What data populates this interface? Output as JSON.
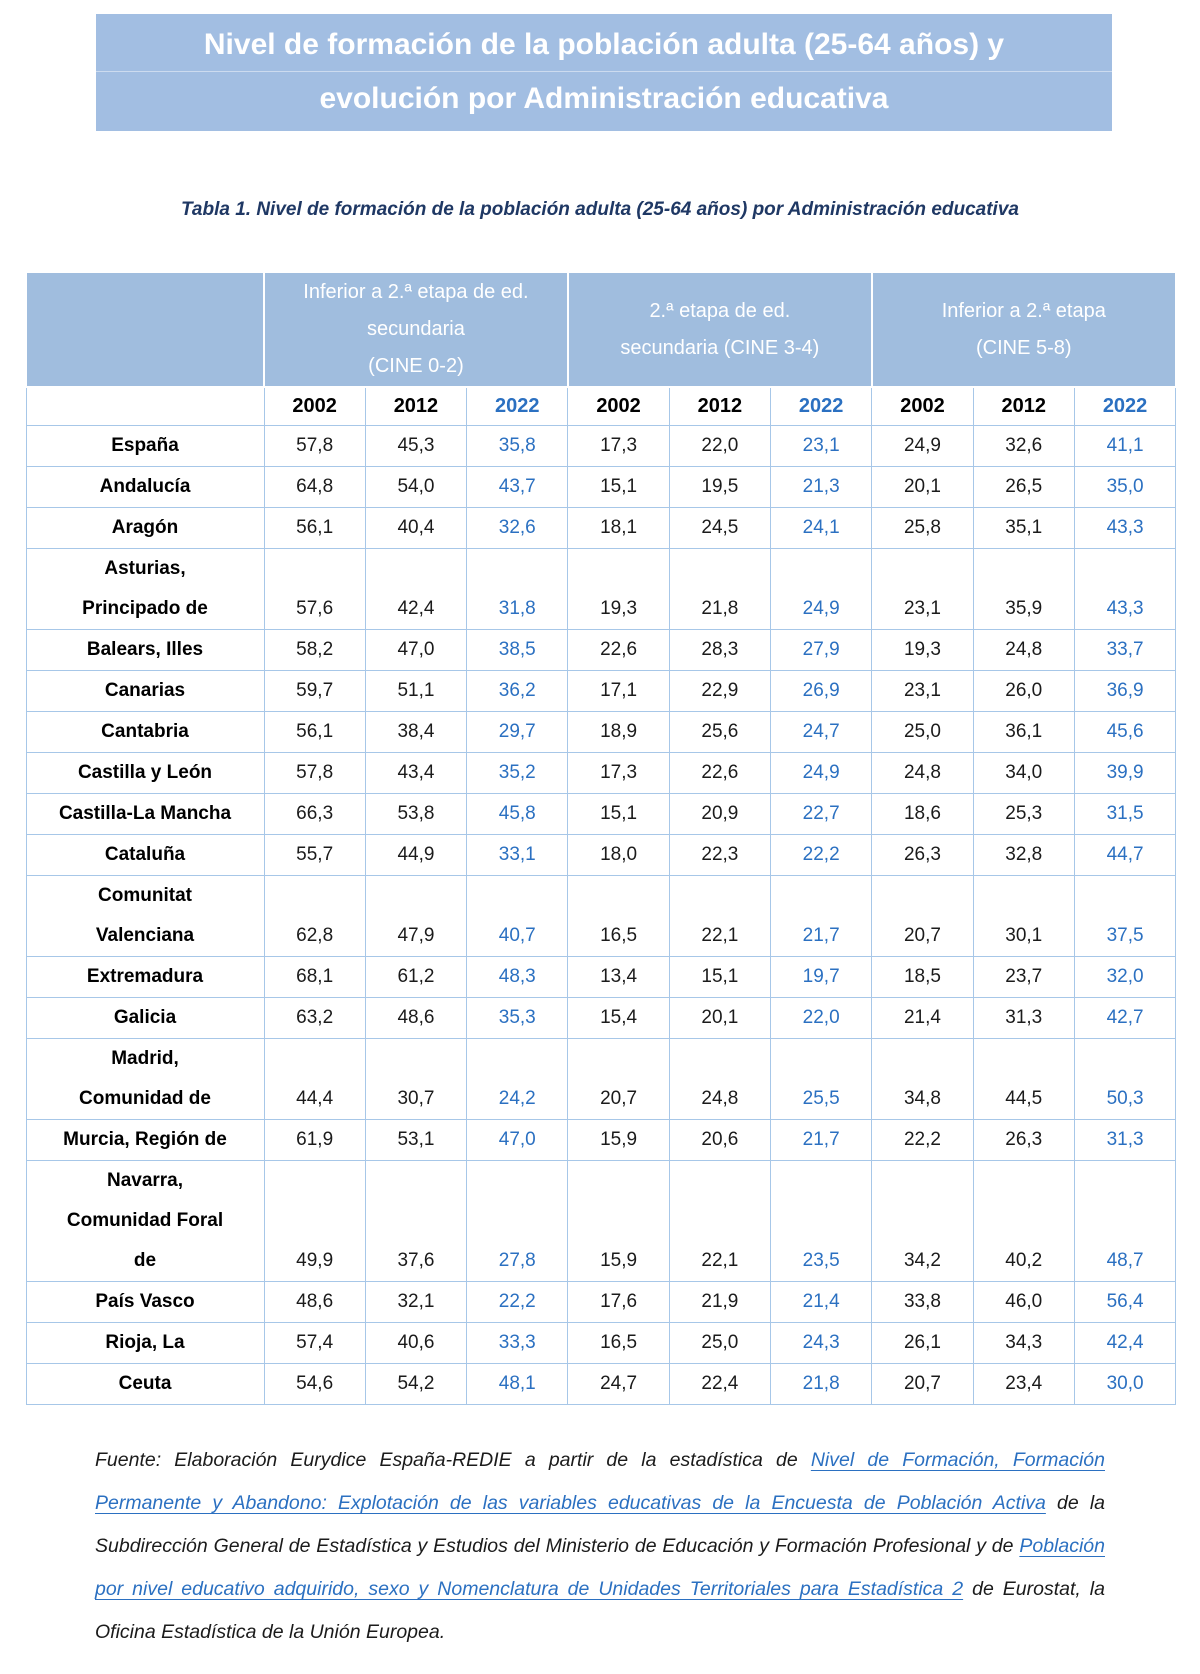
{
  "title": {
    "line1": "Nivel de formación de la población adulta (25-64 años) y",
    "line2": "evolución por Administración educativa"
  },
  "caption": "Tabla 1. Nivel de formación de la población adulta (25-64 años) por Administración educativa",
  "colors": {
    "banner_bg": "#A2BEE2",
    "table_header_bg": "#A0BDDE",
    "table_border": "#A7C7E8",
    "accent_blue_2022": "#2B70C1",
    "caption_navy": "#1F3864",
    "link_blue": "#2B70C1"
  },
  "table": {
    "groups": [
      "Inferior a 2.ª etapa de ed.\nsecundaria\n(CINE 0-2)",
      "2.ª etapa de ed.\nsecundaria (CINE 3-4)",
      "Inferior a 2.ª etapa\n(CINE 5-8)"
    ],
    "years": [
      "2002",
      "2012",
      "2022"
    ],
    "rows": [
      {
        "label": "España",
        "values": [
          "57,8",
          "45,3",
          "35,8",
          "17,3",
          "22,0",
          "23,1",
          "24,9",
          "32,6",
          "41,1"
        ]
      },
      {
        "label": "Andalucía",
        "values": [
          "64,8",
          "54,0",
          "43,7",
          "15,1",
          "19,5",
          "21,3",
          "20,1",
          "26,5",
          "35,0"
        ]
      },
      {
        "label": "Aragón",
        "values": [
          "56,1",
          "40,4",
          "32,6",
          "18,1",
          "24,5",
          "24,1",
          "25,8",
          "35,1",
          "43,3"
        ]
      },
      {
        "label": "Asturias,\nPrincipado de",
        "values": [
          "57,6",
          "42,4",
          "31,8",
          "19,3",
          "21,8",
          "24,9",
          "23,1",
          "35,9",
          "43,3"
        ]
      },
      {
        "label": "Balears, Illes",
        "values": [
          "58,2",
          "47,0",
          "38,5",
          "22,6",
          "28,3",
          "27,9",
          "19,3",
          "24,8",
          "33,7"
        ]
      },
      {
        "label": "Canarias",
        "values": [
          "59,7",
          "51,1",
          "36,2",
          "17,1",
          "22,9",
          "26,9",
          "23,1",
          "26,0",
          "36,9"
        ]
      },
      {
        "label": "Cantabria",
        "values": [
          "56,1",
          "38,4",
          "29,7",
          "18,9",
          "25,6",
          "24,7",
          "25,0",
          "36,1",
          "45,6"
        ]
      },
      {
        "label": "Castilla y León",
        "values": [
          "57,8",
          "43,4",
          "35,2",
          "17,3",
          "22,6",
          "24,9",
          "24,8",
          "34,0",
          "39,9"
        ]
      },
      {
        "label": "Castilla-La Mancha",
        "values": [
          "66,3",
          "53,8",
          "45,8",
          "15,1",
          "20,9",
          "22,7",
          "18,6",
          "25,3",
          "31,5"
        ]
      },
      {
        "label": "Cataluña",
        "values": [
          "55,7",
          "44,9",
          "33,1",
          "18,0",
          "22,3",
          "22,2",
          "26,3",
          "32,8",
          "44,7"
        ]
      },
      {
        "label": "Comunitat\nValenciana",
        "values": [
          "62,8",
          "47,9",
          "40,7",
          "16,5",
          "22,1",
          "21,7",
          "20,7",
          "30,1",
          "37,5"
        ]
      },
      {
        "label": "Extremadura",
        "values": [
          "68,1",
          "61,2",
          "48,3",
          "13,4",
          "15,1",
          "19,7",
          "18,5",
          "23,7",
          "32,0"
        ]
      },
      {
        "label": "Galicia",
        "values": [
          "63,2",
          "48,6",
          "35,3",
          "15,4",
          "20,1",
          "22,0",
          "21,4",
          "31,3",
          "42,7"
        ]
      },
      {
        "label": "Madrid,\nComunidad de",
        "values": [
          "44,4",
          "30,7",
          "24,2",
          "20,7",
          "24,8",
          "25,5",
          "34,8",
          "44,5",
          "50,3"
        ]
      },
      {
        "label": "Murcia, Región de",
        "values": [
          "61,9",
          "53,1",
          "47,0",
          "15,9",
          "20,6",
          "21,7",
          "22,2",
          "26,3",
          "31,3"
        ]
      },
      {
        "label": "Navarra,\nComunidad Foral\nde",
        "values": [
          "49,9",
          "37,6",
          "27,8",
          "15,9",
          "22,1",
          "23,5",
          "34,2",
          "40,2",
          "48,7"
        ]
      },
      {
        "label": "País Vasco",
        "values": [
          "48,6",
          "32,1",
          "22,2",
          "17,6",
          "21,9",
          "21,4",
          "33,8",
          "46,0",
          "56,4"
        ]
      },
      {
        "label": "Rioja, La",
        "values": [
          "57,4",
          "40,6",
          "33,3",
          "16,5",
          "25,0",
          "24,3",
          "26,1",
          "34,3",
          "42,4"
        ]
      },
      {
        "label": "Ceuta",
        "values": [
          "54,6",
          "54,2",
          "48,1",
          "24,7",
          "22,4",
          "21,8",
          "20,7",
          "23,4",
          "30,0"
        ]
      }
    ]
  },
  "footer": {
    "segments": [
      {
        "text": "Fuente: Elaboración Eurydice España-REDIE a partir de la estadística de ",
        "link": false
      },
      {
        "text": "Nivel de Formación, Formación Permanente y Abandono: Explotación de las variables educativas de la Encuesta de Población Activa",
        "link": true
      },
      {
        "text": " de la Subdirección General de Estadística y Estudios del Ministerio de Educación y Formación Profesional y de ",
        "link": false
      },
      {
        "text": "Población por nivel educativo adquirido, sexo y Nomenclatura de Unidades Territoriales para Estadística 2",
        "link": true
      },
      {
        "text": " de Eurostat, la Oficina Estadística de la Unión Europea.",
        "link": false
      }
    ]
  }
}
